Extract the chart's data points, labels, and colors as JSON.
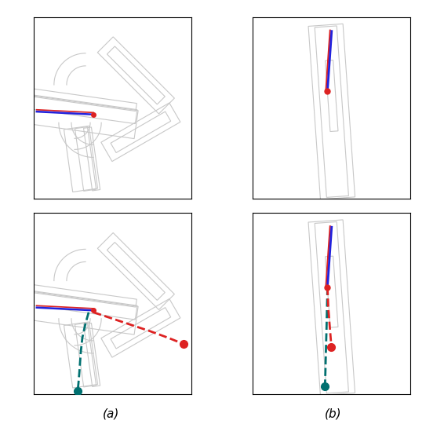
{
  "fig_width": 5.66,
  "fig_height": 5.4,
  "dpi": 100,
  "bg_color": "#ffffff",
  "road_color": "#c8c8c8",
  "road_lw": 0.8,
  "blue_color": "#2222dd",
  "red_solid_color": "#dd2222",
  "teal_color": "#007070",
  "red_dashed_color": "#dd2222",
  "label_a": "(a)",
  "label_b": "(b)"
}
